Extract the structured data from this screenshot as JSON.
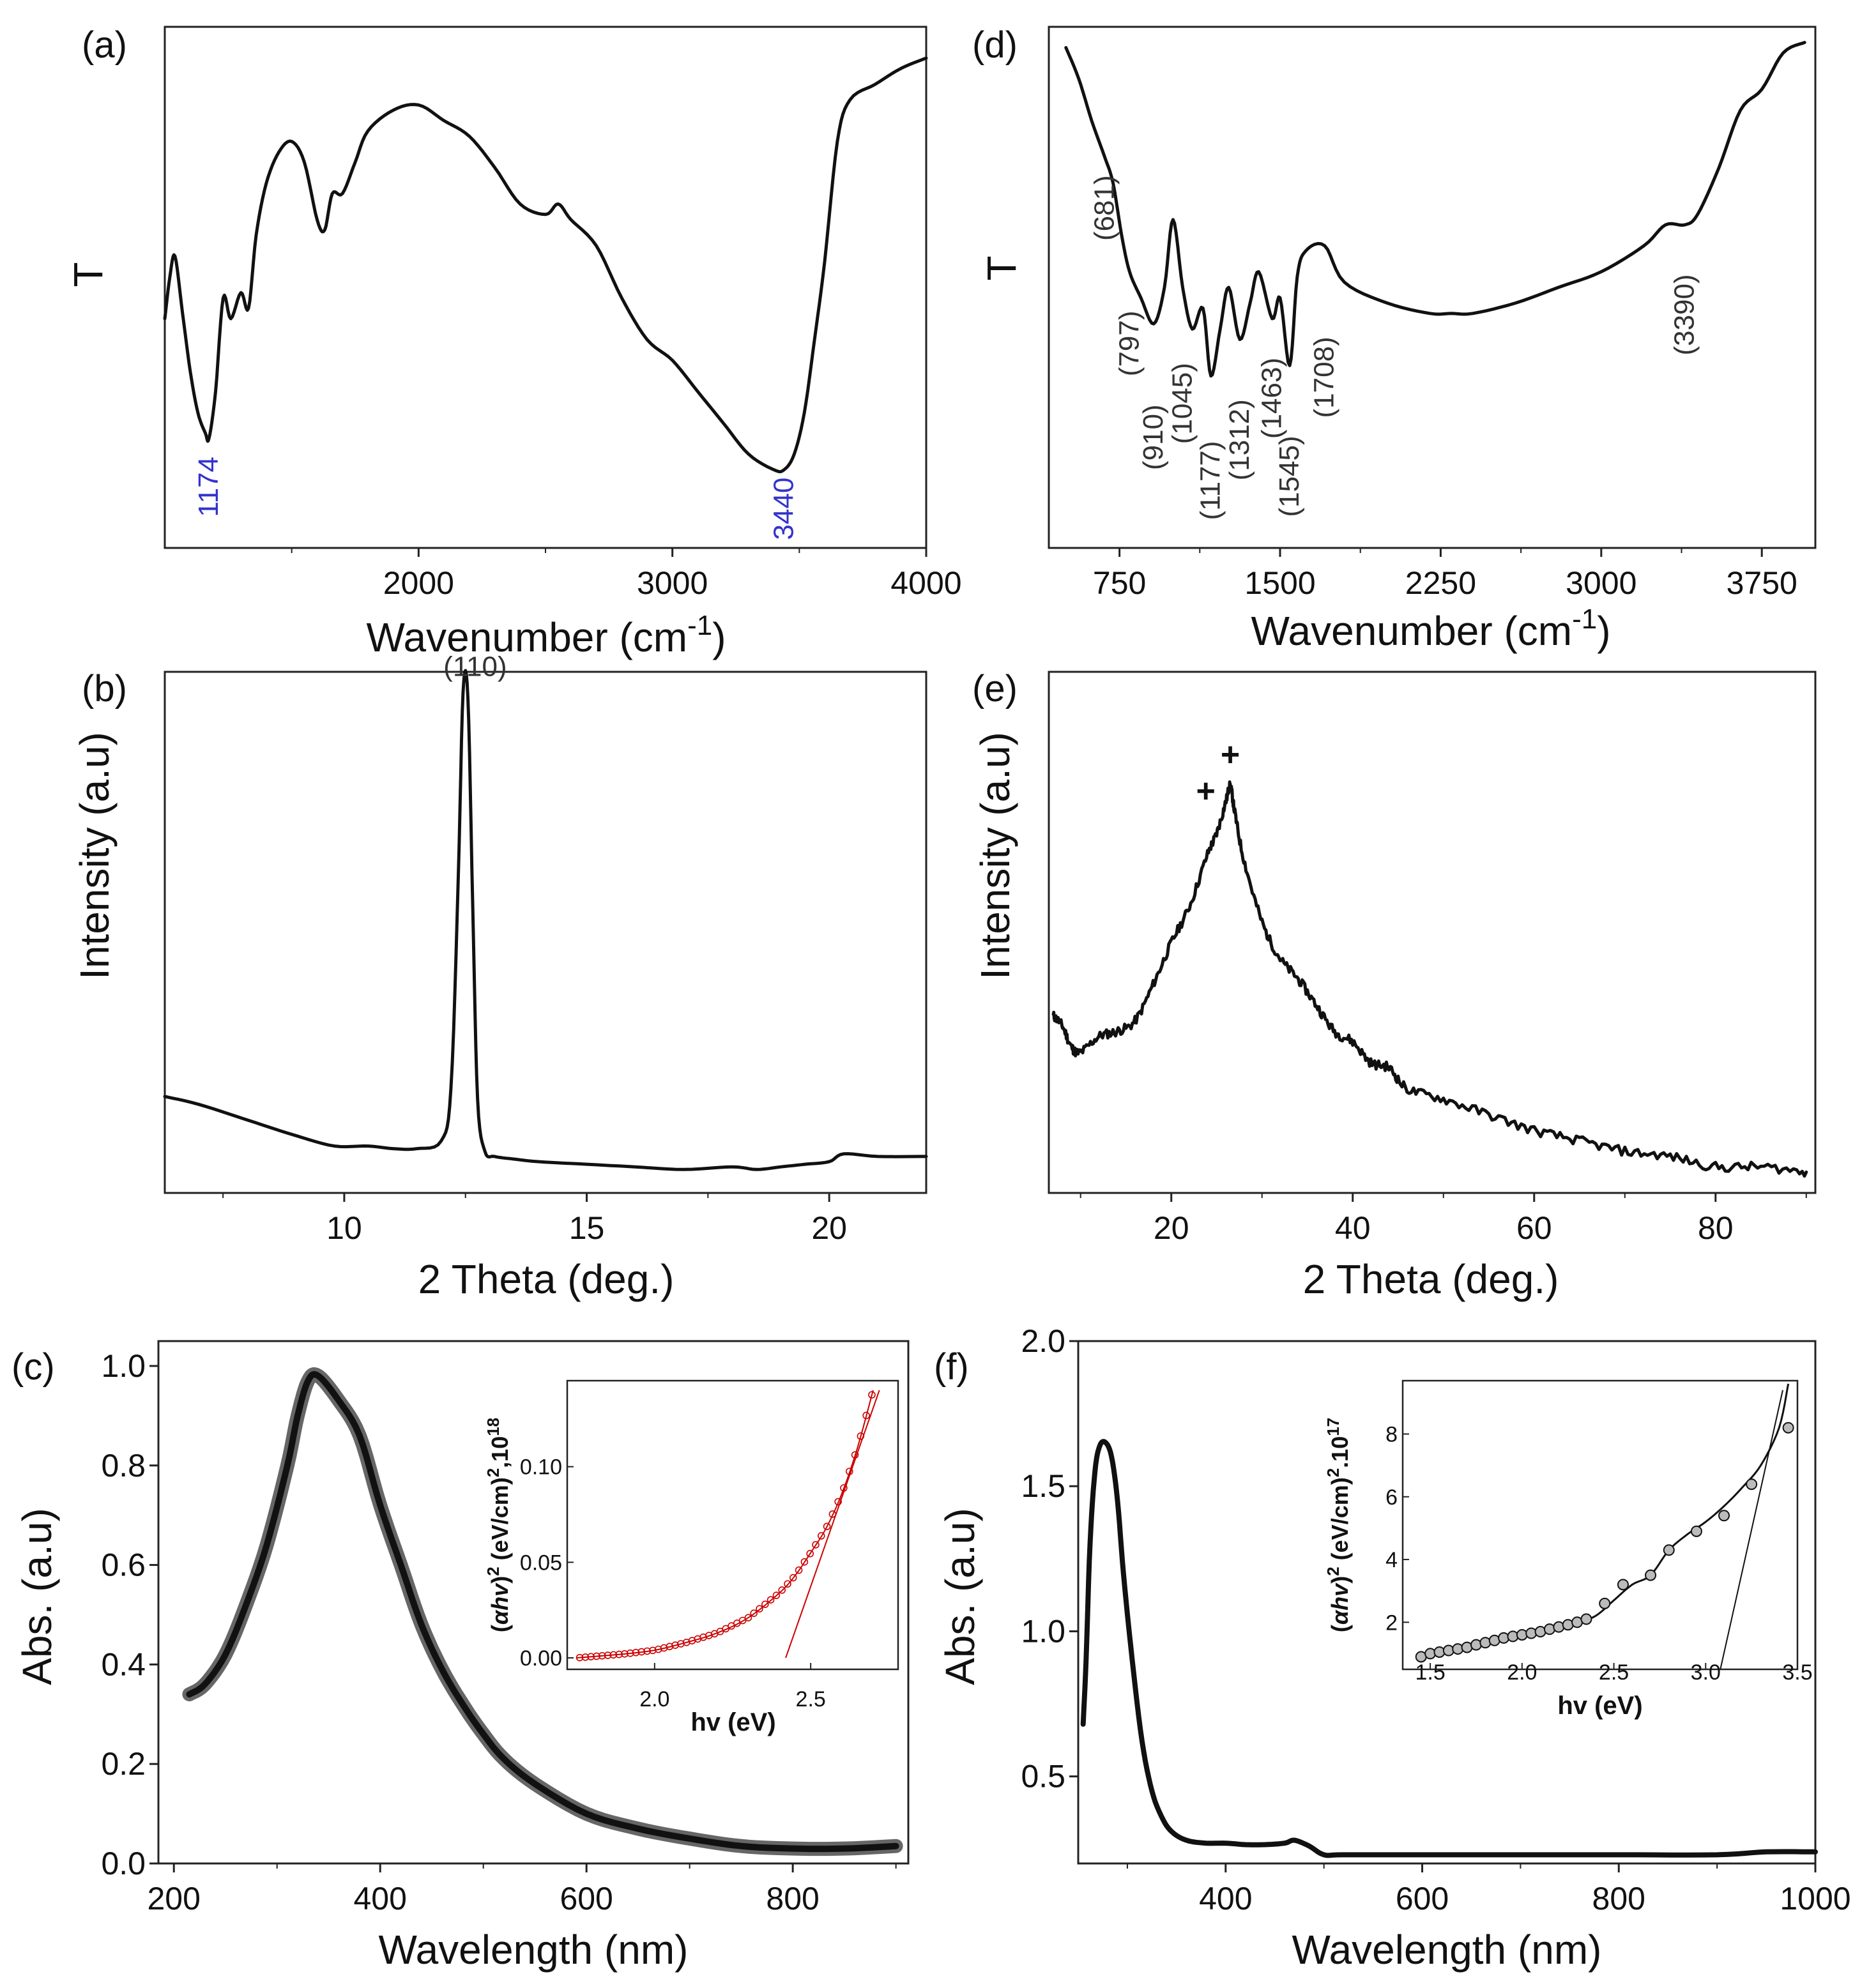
{
  "chart_data": [
    {
      "panel": "(a)",
      "type": "line",
      "xlabel": "Wavenumber (cm",
      "xlabel_sup": "-1",
      "xlabel_close": ")",
      "ylabel": "T",
      "xlim": [
        1000,
        4000
      ],
      "ylim": [
        0,
        1
      ],
      "xticks": [
        {
          "v": 2000,
          "label": "2000"
        },
        {
          "v": 3000,
          "label": "3000"
        },
        {
          "v": 4000,
          "label": "4000"
        }
      ],
      "annotations": [
        {
          "x": 1174,
          "y": 0.19,
          "text": "1174",
          "color": "blue"
        },
        {
          "x": 3440,
          "y": 0.15,
          "text": "3440",
          "color": "blue"
        }
      ],
      "series": [
        {
          "name": "FTIR (a)",
          "x": [
            1000,
            1020,
            1040,
            1070,
            1100,
            1130,
            1160,
            1174,
            1200,
            1230,
            1260,
            1300,
            1330,
            1360,
            1400,
            1450,
            1500,
            1550,
            1600,
            1630,
            1660,
            1700,
            1750,
            1800,
            1900,
            2000,
            2100,
            2200,
            2300,
            2400,
            2500,
            2550,
            2600,
            2700,
            2800,
            2900,
            3000,
            3100,
            3200,
            3300,
            3400,
            3440,
            3480,
            3520,
            3560,
            3600,
            3650,
            3700,
            3800,
            3900,
            4000
          ],
          "y": [
            0.44,
            0.52,
            0.56,
            0.45,
            0.34,
            0.26,
            0.22,
            0.21,
            0.3,
            0.48,
            0.44,
            0.49,
            0.46,
            0.6,
            0.7,
            0.76,
            0.78,
            0.74,
            0.63,
            0.61,
            0.68,
            0.68,
            0.74,
            0.8,
            0.84,
            0.85,
            0.82,
            0.79,
            0.73,
            0.66,
            0.64,
            0.66,
            0.63,
            0.58,
            0.48,
            0.4,
            0.36,
            0.3,
            0.24,
            0.18,
            0.15,
            0.15,
            0.18,
            0.26,
            0.4,
            0.55,
            0.78,
            0.86,
            0.89,
            0.92,
            0.94
          ]
        }
      ]
    },
    {
      "panel": "(b)",
      "type": "line",
      "xlabel": "2 Theta (deg.)",
      "ylabel": "Intensity (a.u)",
      "xlim": [
        6.3,
        22
      ],
      "ylim": [
        0,
        1
      ],
      "xticks": [
        {
          "v": 10,
          "label": "10"
        },
        {
          "v": 15,
          "label": "15"
        },
        {
          "v": 20,
          "label": "20"
        }
      ],
      "annotations": [
        {
          "x": 12.7,
          "y": 0.98,
          "text": "(110)"
        }
      ],
      "series": [
        {
          "name": "XRD (b)",
          "x": [
            6.3,
            7,
            8,
            9,
            9.8,
            10.5,
            11,
            11.5,
            12,
            12.2,
            12.35,
            12.45,
            12.55,
            12.65,
            12.75,
            12.9,
            13.1,
            13.5,
            14,
            15,
            16,
            17,
            18,
            18.5,
            19,
            19.5,
            20,
            20.3,
            21,
            22
          ],
          "y": [
            0.185,
            0.17,
            0.14,
            0.11,
            0.09,
            0.09,
            0.085,
            0.085,
            0.1,
            0.2,
            0.6,
            0.96,
            0.95,
            0.55,
            0.18,
            0.08,
            0.07,
            0.065,
            0.06,
            0.055,
            0.05,
            0.045,
            0.05,
            0.045,
            0.05,
            0.055,
            0.06,
            0.075,
            0.07,
            0.07
          ]
        }
      ]
    },
    {
      "panel": "(c)",
      "type": "line",
      "xlabel": "Wavelength (nm)",
      "ylabel": "Abs. (a.u)",
      "xlim": [
        185,
        912
      ],
      "ylim": [
        0,
        1.05
      ],
      "xticks": [
        {
          "v": 200,
          "label": "200"
        },
        {
          "v": 400,
          "label": "400"
        },
        {
          "v": 600,
          "label": "600"
        },
        {
          "v": 800,
          "label": "800"
        }
      ],
      "yticks": [
        {
          "v": 0.0,
          "label": "0.0"
        },
        {
          "v": 0.2,
          "label": "0.2"
        },
        {
          "v": 0.4,
          "label": "0.4"
        },
        {
          "v": 0.6,
          "label": "0.6"
        },
        {
          "v": 0.8,
          "label": "0.8"
        },
        {
          "v": 1.0,
          "label": "1.0"
        }
      ],
      "series": [
        {
          "name": "UV-Vis (c)",
          "x": [
            215,
            230,
            250,
            270,
            290,
            310,
            320,
            330,
            340,
            360,
            380,
            400,
            420,
            440,
            460,
            480,
            500,
            520,
            550,
            600,
            650,
            700,
            750,
            800,
            850,
            900
          ],
          "y": [
            0.34,
            0.36,
            0.42,
            0.52,
            0.64,
            0.8,
            0.9,
            0.97,
            0.98,
            0.93,
            0.86,
            0.72,
            0.6,
            0.48,
            0.39,
            0.32,
            0.26,
            0.21,
            0.16,
            0.1,
            0.07,
            0.05,
            0.035,
            0.03,
            0.03,
            0.035
          ]
        }
      ],
      "inset": {
        "xlabel": "hv (eV)",
        "ylabel": "(αhv)² (eV/cm)²,10¹⁸",
        "ylabel_html": [
          "(",
          "αhv",
          ")",
          "2",
          " (eV/cm)",
          "2",
          ",10",
          "18"
        ],
        "xlim": [
          1.72,
          2.78
        ],
        "ylim": [
          -0.006,
          0.145
        ],
        "xticks": [
          {
            "v": 2.0,
            "label": "2.0"
          },
          {
            "v": 2.5,
            "label": "2.5"
          }
        ],
        "yticks": [
          {
            "v": 0.0,
            "label": "0.00"
          },
          {
            "v": 0.05,
            "label": "0.05"
          },
          {
            "v": 0.1,
            "label": "0.10"
          }
        ],
        "color": "#cc0000",
        "x": [
          1.75,
          1.9,
          2.0,
          2.1,
          2.2,
          2.3,
          2.4,
          2.45,
          2.5,
          2.55,
          2.6,
          2.65,
          2.7
        ],
        "y": [
          0.0,
          0.002,
          0.004,
          0.008,
          0.013,
          0.021,
          0.034,
          0.043,
          0.055,
          0.068,
          0.086,
          0.11,
          0.14
        ],
        "tangent": {
          "x": [
            2.42,
            2.72
          ],
          "y": [
            0.0,
            0.14
          ]
        }
      }
    },
    {
      "panel": "(d)",
      "type": "line",
      "xlabel": "Wavenumber (cm",
      "xlabel_sup": "-1",
      "xlabel_close": ")",
      "ylabel": "T",
      "xlim": [
        420,
        4000
      ],
      "ylim": [
        0,
        1
      ],
      "xticks": [
        {
          "v": 750,
          "label": "750"
        },
        {
          "v": 1500,
          "label": "1500"
        },
        {
          "v": 2250,
          "label": "2250"
        },
        {
          "v": 3000,
          "label": "3000"
        },
        {
          "v": 3750,
          "label": "3750"
        }
      ],
      "annotations": [
        {
          "x": 681,
          "y": 0.73,
          "text": "(681)"
        },
        {
          "x": 797,
          "y": 0.47,
          "text": "(797)"
        },
        {
          "x": 910,
          "y": 0.29,
          "text": "(910)"
        },
        {
          "x": 1045,
          "y": 0.37,
          "text": "(1045)"
        },
        {
          "x": 1177,
          "y": 0.22,
          "text": "(1177)"
        },
        {
          "x": 1312,
          "y": 0.3,
          "text": "(1312)"
        },
        {
          "x": 1463,
          "y": 0.38,
          "text": "(1463)"
        },
        {
          "x": 1545,
          "y": 0.23,
          "text": "(1545)"
        },
        {
          "x": 1708,
          "y": 0.42,
          "text": "(1708)"
        },
        {
          "x": 3390,
          "y": 0.54,
          "text": "(3390)"
        }
      ],
      "series": [
        {
          "name": "FTIR (d)",
          "x": [
            500,
            560,
            620,
            681,
            720,
            760,
            797,
            850,
            910,
            960,
            1000,
            1045,
            1090,
            1140,
            1177,
            1220,
            1260,
            1312,
            1360,
            1400,
            1463,
            1500,
            1545,
            1580,
            1620,
            1708,
            1800,
            2000,
            2200,
            2300,
            2400,
            2600,
            2800,
            3000,
            3200,
            3300,
            3390,
            3450,
            3550,
            3650,
            3750,
            3850,
            3950
          ],
          "y": [
            0.96,
            0.9,
            0.82,
            0.75,
            0.7,
            0.6,
            0.53,
            0.48,
            0.43,
            0.5,
            0.63,
            0.5,
            0.42,
            0.46,
            0.33,
            0.42,
            0.5,
            0.4,
            0.47,
            0.53,
            0.44,
            0.48,
            0.35,
            0.52,
            0.57,
            0.58,
            0.51,
            0.47,
            0.45,
            0.45,
            0.45,
            0.47,
            0.5,
            0.53,
            0.58,
            0.62,
            0.62,
            0.64,
            0.73,
            0.84,
            0.88,
            0.95,
            0.97
          ]
        }
      ]
    },
    {
      "panel": "(e)",
      "type": "line",
      "xlabel": "2 Theta (deg.)",
      "ylabel": "Intensity (a.u)",
      "xlim": [
        6.5,
        91
      ],
      "ylim": [
        0,
        1
      ],
      "xticks": [
        {
          "v": 20,
          "label": "20"
        },
        {
          "v": 40,
          "label": "40"
        },
        {
          "v": 60,
          "label": "60"
        },
        {
          "v": 80,
          "label": "80"
        }
      ],
      "annotations": [
        {
          "x": 26.5,
          "y": 0.82,
          "text": "+"
        },
        {
          "x": 23.8,
          "y": 0.75,
          "text": "+"
        }
      ],
      "series": [
        {
          "name": "XRD (e)",
          "x": [
            7,
            8,
            9,
            10,
            12,
            14,
            16,
            18,
            20,
            22,
            24,
            25,
            26,
            26.5,
            27,
            28,
            30,
            32,
            34,
            36,
            38,
            40,
            42,
            44,
            46,
            50,
            55,
            60,
            65,
            70,
            75,
            80,
            85,
            90
          ],
          "y": [
            0.34,
            0.32,
            0.28,
            0.27,
            0.3,
            0.31,
            0.33,
            0.4,
            0.48,
            0.55,
            0.65,
            0.69,
            0.75,
            0.78,
            0.73,
            0.64,
            0.52,
            0.45,
            0.41,
            0.36,
            0.31,
            0.29,
            0.25,
            0.24,
            0.2,
            0.18,
            0.15,
            0.12,
            0.1,
            0.08,
            0.07,
            0.05,
            0.05,
            0.04
          ]
        }
      ]
    },
    {
      "panel": "(f)",
      "type": "line",
      "xlabel": "Wavelength (nm)",
      "ylabel": "Abs. (a.u)",
      "xlim": [
        250,
        1000
      ],
      "ylim": [
        0.2,
        2.0
      ],
      "xticks": [
        {
          "v": 400,
          "label": "400"
        },
        {
          "v": 600,
          "label": "600"
        },
        {
          "v": 800,
          "label": "800"
        },
        {
          "v": 1000,
          "label": "1000"
        }
      ],
      "yticks": [
        {
          "v": 0.5,
          "label": "0.5"
        },
        {
          "v": 1.0,
          "label": "1.0"
        },
        {
          "v": 1.5,
          "label": "1.5"
        },
        {
          "v": 2.0,
          "label": "2.0"
        }
      ],
      "series": [
        {
          "name": "UV-Vis (f)",
          "x": [
            255,
            258,
            262,
            267,
            272,
            278,
            284,
            290,
            296,
            305,
            315,
            325,
            335,
            345,
            360,
            380,
            400,
            420,
            440,
            460,
            470,
            485,
            500,
            520,
            600,
            700,
            800,
            900,
            950,
            1000
          ],
          "y": [
            0.68,
            0.9,
            1.3,
            1.55,
            1.64,
            1.65,
            1.6,
            1.45,
            1.2,
            0.9,
            0.62,
            0.45,
            0.36,
            0.31,
            0.28,
            0.27,
            0.27,
            0.265,
            0.265,
            0.27,
            0.28,
            0.26,
            0.23,
            0.23,
            0.23,
            0.23,
            0.23,
            0.23,
            0.24,
            0.24
          ]
        }
      ],
      "inset": {
        "xlabel": "hv (eV)",
        "ylabel": "(αhv)² (eV/cm)².10¹⁷",
        "ylabel_html": [
          "(",
          "αhv",
          ")",
          "2",
          " (eV/cm)",
          "2",
          ".10",
          "17"
        ],
        "xlim": [
          1.35,
          3.5
        ],
        "ylim": [
          0.5,
          9.7
        ],
        "xticks": [
          {
            "v": 1.5,
            "label": "1.5"
          },
          {
            "v": 2.0,
            "label": "2.0"
          },
          {
            "v": 2.5,
            "label": "2.5"
          },
          {
            "v": 3.0,
            "label": "3.0"
          },
          {
            "v": 3.5,
            "label": "3.5"
          }
        ],
        "yticks": [
          {
            "v": 2,
            "label": "2"
          },
          {
            "v": 4,
            "label": "4"
          },
          {
            "v": 6,
            "label": "6"
          },
          {
            "v": 8,
            "label": "8"
          }
        ],
        "color": "#111111",
        "x": [
          1.45,
          1.5,
          1.6,
          1.7,
          1.8,
          1.9,
          2.0,
          2.1,
          2.2,
          2.3,
          2.4,
          2.5,
          2.6,
          2.7,
          2.8,
          2.9,
          3.0,
          3.1,
          3.2,
          3.3,
          3.4,
          3.45
        ],
        "y": [
          0.9,
          1.0,
          1.1,
          1.2,
          1.35,
          1.5,
          1.6,
          1.7,
          1.85,
          2.0,
          2.2,
          2.7,
          3.2,
          3.5,
          4.3,
          4.8,
          5.2,
          5.7,
          6.3,
          7.0,
          8.2,
          9.6
        ],
        "markers": {
          "x": [
            1.45,
            1.5,
            1.55,
            1.6,
            1.65,
            1.7,
            1.75,
            1.8,
            1.85,
            1.9,
            1.95,
            2.0,
            2.05,
            2.1,
            2.15,
            2.2,
            2.25,
            2.3,
            2.35,
            2.45,
            2.55,
            2.7,
            2.8,
            2.95,
            3.1,
            3.25,
            3.45
          ],
          "y": [
            0.9,
            1.0,
            1.05,
            1.1,
            1.15,
            1.2,
            1.28,
            1.35,
            1.42,
            1.5,
            1.55,
            1.6,
            1.65,
            1.7,
            1.78,
            1.85,
            1.92,
            2.0,
            2.1,
            2.6,
            3.2,
            3.5,
            4.3,
            4.9,
            5.4,
            6.4,
            8.2
          ]
        },
        "tangent": {
          "x": [
            3.08,
            3.42
          ],
          "y": [
            0.5,
            9.4
          ]
        }
      }
    }
  ]
}
